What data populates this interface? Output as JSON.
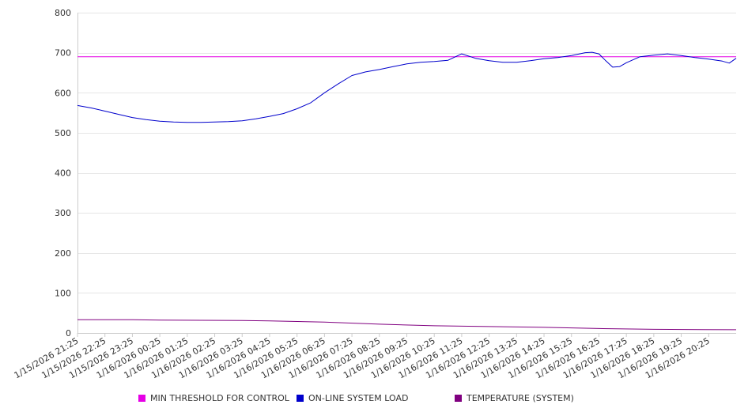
{
  "chart_data": {
    "type": "line",
    "title": "",
    "xlabel": "",
    "ylabel": "",
    "ylim": [
      0,
      800
    ],
    "yticks": [
      0,
      100,
      200,
      300,
      400,
      500,
      600,
      700,
      800
    ],
    "grid": true,
    "legend_position": "bottom",
    "x_tick_labels": [
      "1/15/2026 21:25",
      "1/15/2026 22:25",
      "1/15/2026 23:25",
      "1/16/2026 00:25",
      "1/16/2026 01:25",
      "1/16/2026 02:25",
      "1/16/2026 03:25",
      "1/16/2026 04:25",
      "1/16/2026 05:25",
      "1/16/2026 06:25",
      "1/16/2026 07:25",
      "1/16/2026 08:25",
      "1/16/2026 09:25",
      "1/16/2026 10:25",
      "1/16/2026 11:25",
      "1/16/2026 12:25",
      "1/16/2026 13:25",
      "1/16/2026 14:25",
      "1/16/2026 15:25",
      "1/16/2026 16:25",
      "1/16/2026 17:25",
      "1/16/2026 18:25",
      "1/16/2026 19:25",
      "1/16/2026 20:25"
    ],
    "x_range": [
      "1/15/2026 21:25",
      "1/16/2026 21:25"
    ],
    "series": [
      {
        "name": "MIN THRESHOLD FOR CONTROL",
        "color": "#e600e6",
        "points": [
          [
            "1/15/2026 21:25",
            690
          ],
          [
            "1/16/2026 21:25",
            690
          ]
        ]
      },
      {
        "name": "ON-LINE SYSTEM LOAD",
        "color": "#0000cc",
        "points": [
          [
            "1/15/2026 21:25",
            568
          ],
          [
            "1/15/2026 21:55",
            562
          ],
          [
            "1/15/2026 22:25",
            554
          ],
          [
            "1/15/2026 22:55",
            546
          ],
          [
            "1/15/2026 23:25",
            538
          ],
          [
            "1/15/2026 23:55",
            533
          ],
          [
            "1/16/2026 00:25",
            529
          ],
          [
            "1/16/2026 00:55",
            527
          ],
          [
            "1/16/2026 01:25",
            526
          ],
          [
            "1/16/2026 01:55",
            526
          ],
          [
            "1/16/2026 02:25",
            527
          ],
          [
            "1/16/2026 02:55",
            528
          ],
          [
            "1/16/2026 03:25",
            530
          ],
          [
            "1/16/2026 03:55",
            535
          ],
          [
            "1/16/2026 04:25",
            541
          ],
          [
            "1/16/2026 04:55",
            548
          ],
          [
            "1/16/2026 05:25",
            560
          ],
          [
            "1/16/2026 05:55",
            575
          ],
          [
            "1/16/2026 06:25",
            600
          ],
          [
            "1/16/2026 06:55",
            622
          ],
          [
            "1/16/2026 07:25",
            643
          ],
          [
            "1/16/2026 07:55",
            652
          ],
          [
            "1/16/2026 08:25",
            658
          ],
          [
            "1/16/2026 08:55",
            665
          ],
          [
            "1/16/2026 09:25",
            672
          ],
          [
            "1/16/2026 09:55",
            676
          ],
          [
            "1/16/2026 10:25",
            678
          ],
          [
            "1/16/2026 10:55",
            681
          ],
          [
            "1/16/2026 11:25",
            697
          ],
          [
            "1/16/2026 11:55",
            686
          ],
          [
            "1/16/2026 12:25",
            680
          ],
          [
            "1/16/2026 12:55",
            676
          ],
          [
            "1/16/2026 13:25",
            676
          ],
          [
            "1/16/2026 13:55",
            680
          ],
          [
            "1/16/2026 14:25",
            685
          ],
          [
            "1/16/2026 14:55",
            688
          ],
          [
            "1/16/2026 15:25",
            693
          ],
          [
            "1/16/2026 15:55",
            700
          ],
          [
            "1/16/2026 16:10",
            701
          ],
          [
            "1/16/2026 16:25",
            697
          ],
          [
            "1/16/2026 16:40",
            680
          ],
          [
            "1/16/2026 16:55",
            664
          ],
          [
            "1/16/2026 17:10",
            665
          ],
          [
            "1/16/2026 17:25",
            675
          ],
          [
            "1/16/2026 17:55",
            690
          ],
          [
            "1/16/2026 18:25",
            694
          ],
          [
            "1/16/2026 18:55",
            697
          ],
          [
            "1/16/2026 19:25",
            693
          ],
          [
            "1/16/2026 19:55",
            688
          ],
          [
            "1/16/2026 20:25",
            684
          ],
          [
            "1/16/2026 20:55",
            679
          ],
          [
            "1/16/2026 21:10",
            674
          ],
          [
            "1/16/2026 21:25",
            686
          ]
        ]
      },
      {
        "name": "TEMPERATURE (SYSTEM)",
        "color": "#800080",
        "points": [
          [
            "1/15/2026 21:25",
            33
          ],
          [
            "1/15/2026 23:25",
            33
          ],
          [
            "1/16/2026 00:25",
            32
          ],
          [
            "1/16/2026 03:25",
            31
          ],
          [
            "1/16/2026 04:25",
            30
          ],
          [
            "1/16/2026 06:25",
            27
          ],
          [
            "1/16/2026 08:25",
            22
          ],
          [
            "1/16/2026 10:25",
            18
          ],
          [
            "1/16/2026 12:25",
            16
          ],
          [
            "1/16/2026 14:25",
            14
          ],
          [
            "1/16/2026 16:25",
            11
          ],
          [
            "1/16/2026 18:25",
            9
          ],
          [
            "1/16/2026 21:25",
            8
          ]
        ]
      }
    ]
  }
}
